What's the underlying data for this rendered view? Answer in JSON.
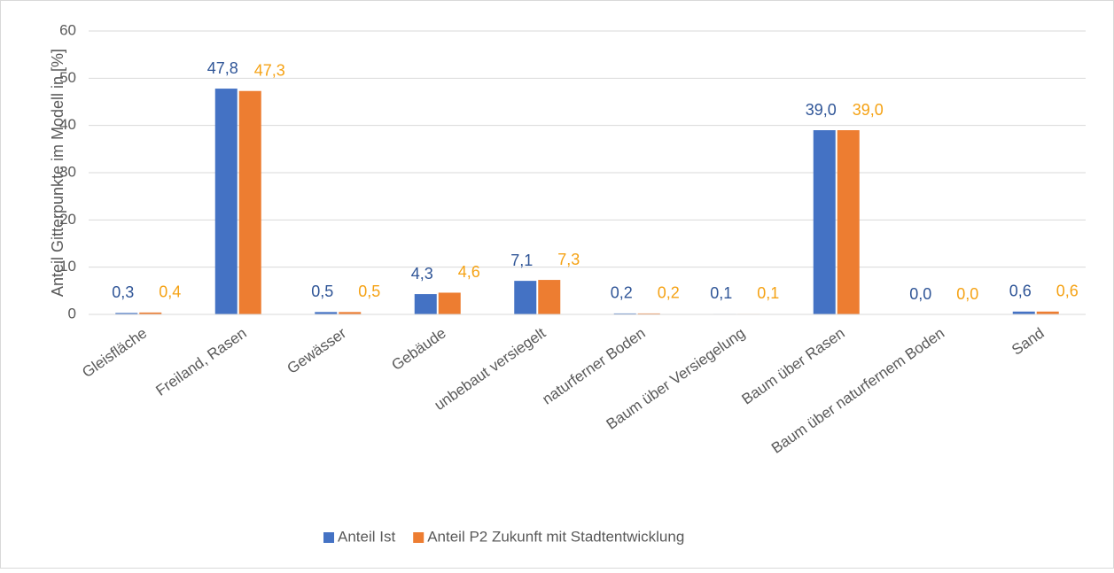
{
  "chart_data": {
    "type": "bar",
    "y_axis_label": "Anteil Gitterpunkte im Modell in [%]",
    "categories": [
      "Gleisfläche",
      "Freiland, Rasen",
      "Gewässer",
      "Gebäude",
      "unbebaut versiegelt",
      "naturferner Boden",
      "Baum über Versiegelung",
      "Baum über Rasen",
      "Baum über naturfernem Boden",
      "Sand"
    ],
    "series": [
      {
        "name": "Anteil Ist",
        "color": "#4472c4",
        "label_color": "#2f5597",
        "values": [
          0.3,
          47.8,
          0.5,
          4.3,
          7.1,
          0.2,
          0.1,
          39.0,
          0.0,
          0.6
        ],
        "value_labels": [
          "0,3",
          "47,8",
          "0,5",
          "4,3",
          "7,1",
          "0,2",
          "0,1",
          "39,0",
          "0,0",
          "0,6"
        ]
      },
      {
        "name": "Anteil P2 Zukunft mit Stadtentwicklung",
        "color": "#ed7d31",
        "label_color": "#f5a214",
        "values": [
          0.4,
          47.3,
          0.5,
          4.6,
          7.3,
          0.2,
          0.1,
          39.0,
          0.0,
          0.6
        ],
        "value_labels": [
          "0,4",
          "47,3",
          "0,5",
          "4,6",
          "7,3",
          "0,2",
          "0,1",
          "39,0",
          "0,0",
          "0,6"
        ]
      }
    ],
    "ylim": [
      0,
      60
    ],
    "yticks": [
      0,
      10,
      20,
      30,
      40,
      50,
      60
    ],
    "grid": true,
    "legend": "bottom"
  }
}
